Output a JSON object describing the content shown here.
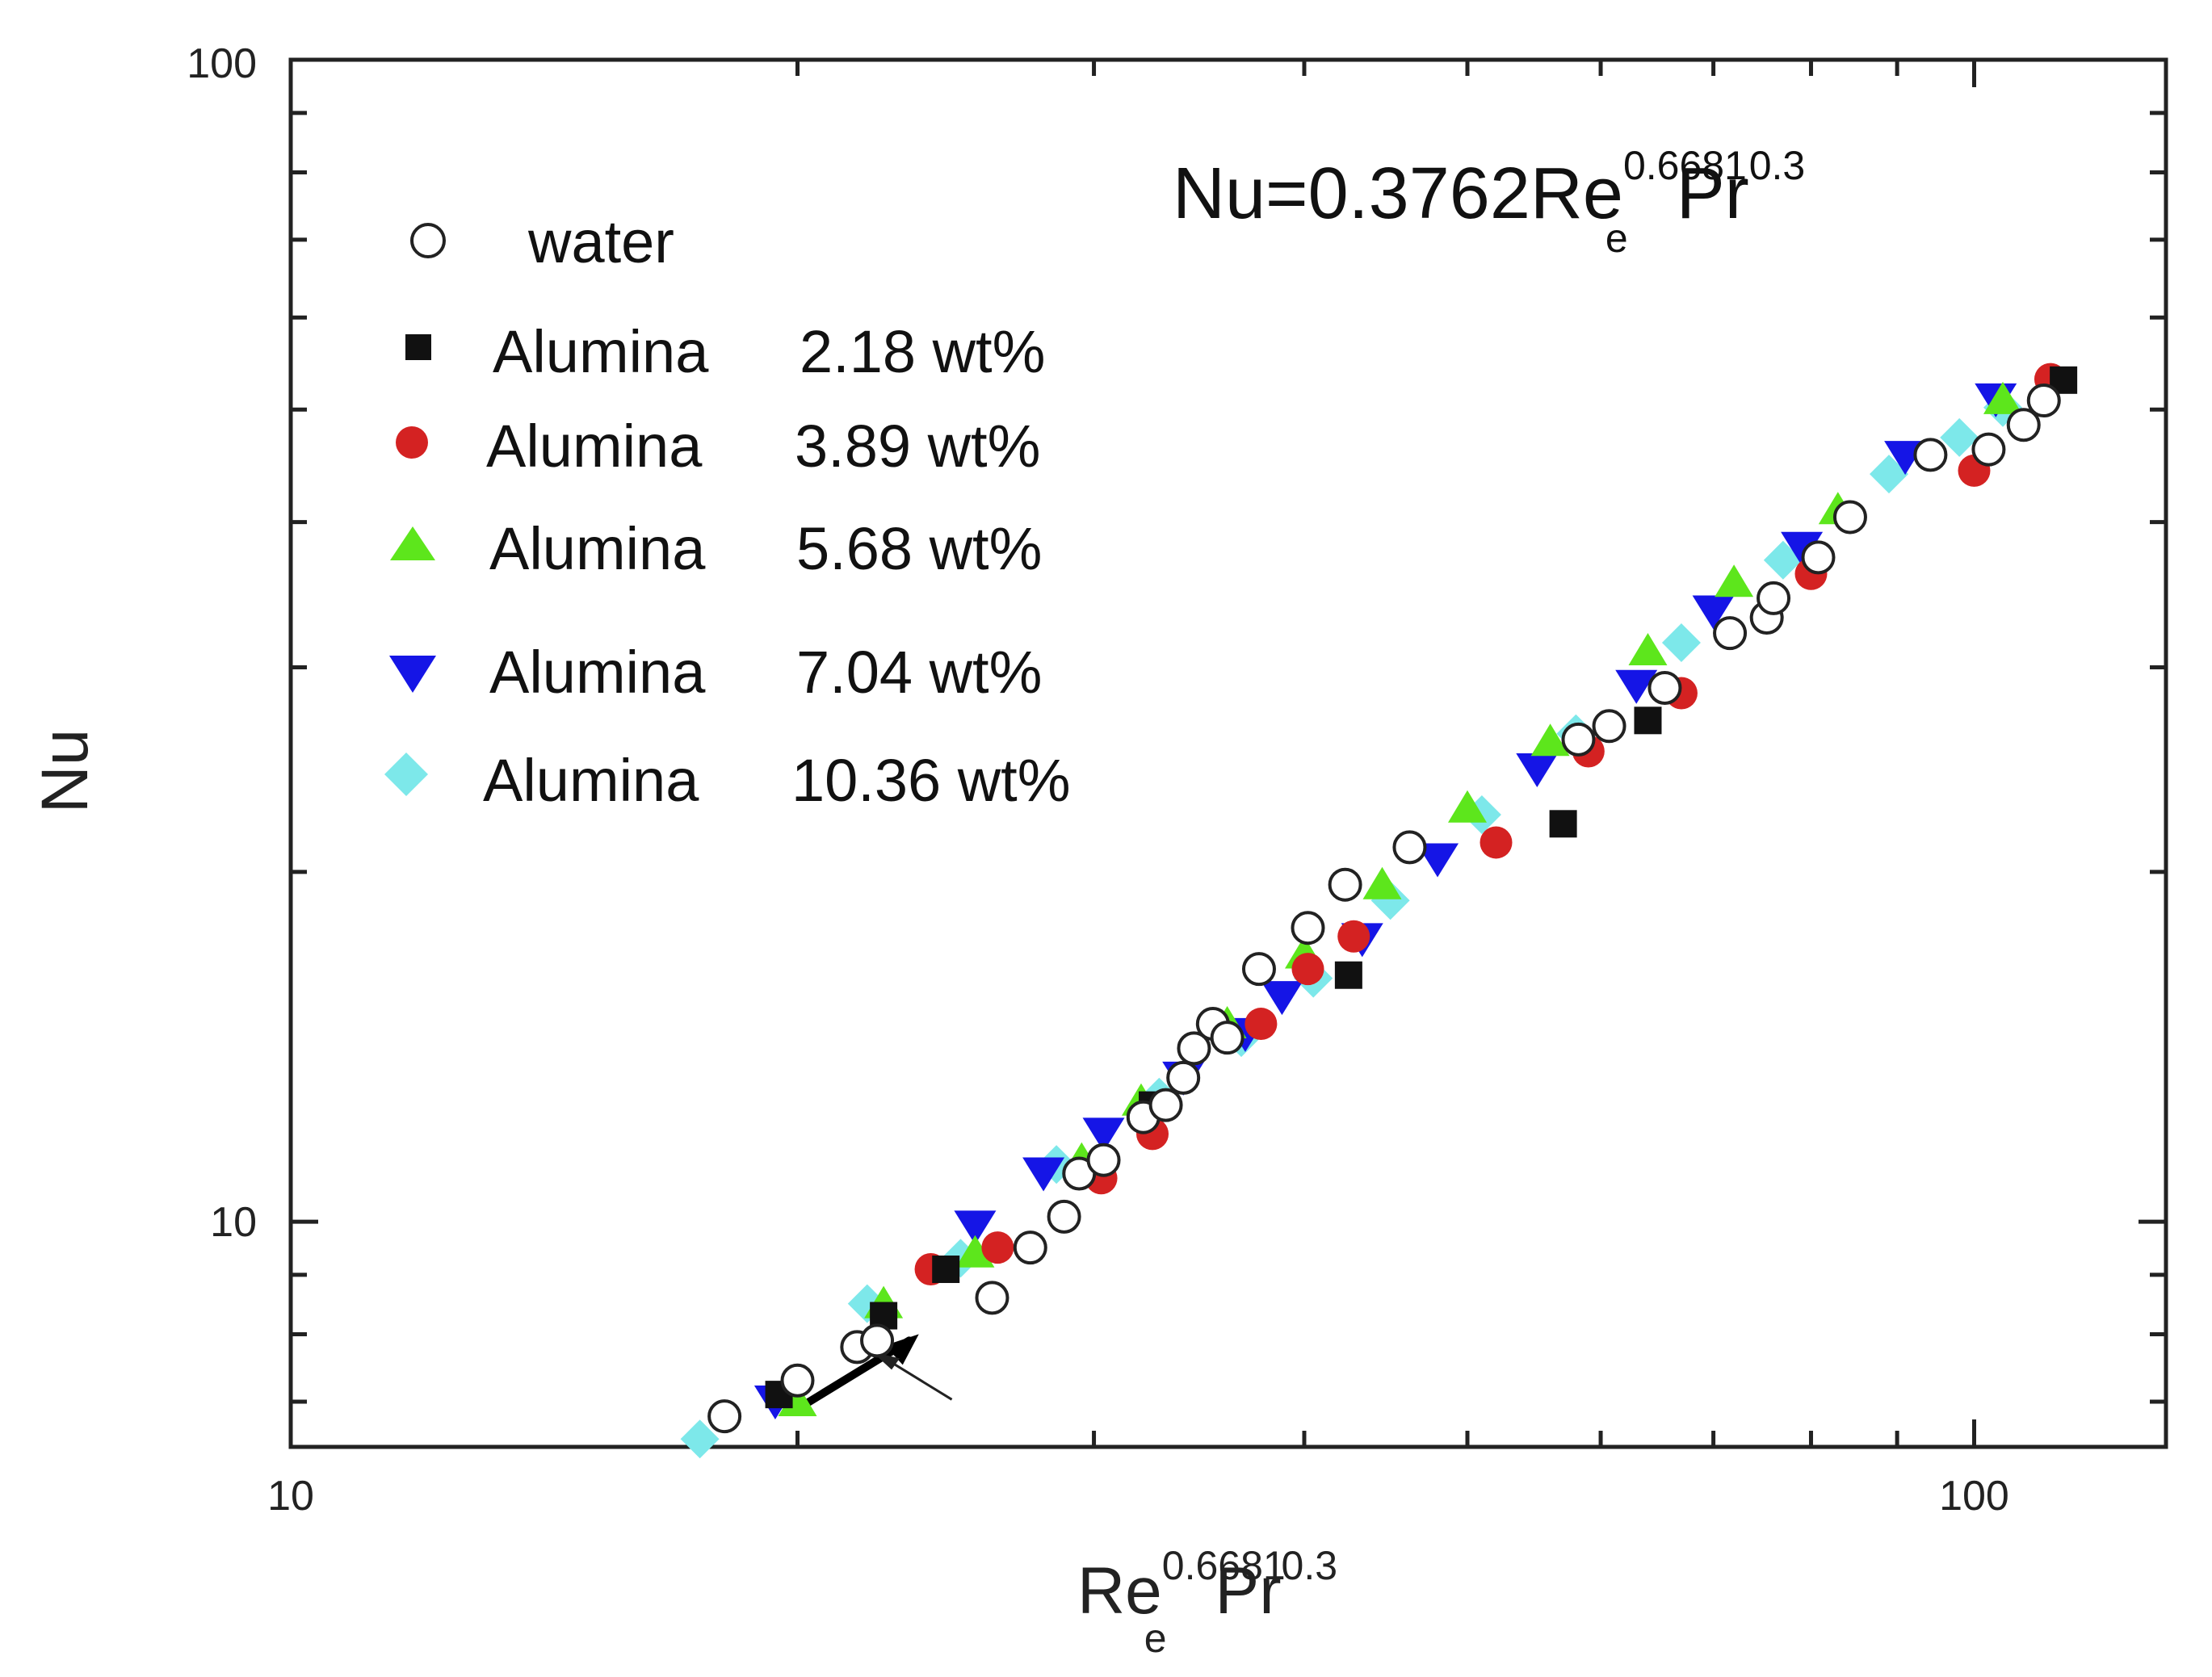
{
  "chart_data": {
    "type": "scatter",
    "x_scale": "log",
    "y_scale": "log",
    "xlim": [
      10,
      130
    ],
    "ylim": [
      6.4,
      100
    ],
    "x_tick_labels": [
      {
        "value": 10,
        "label": "10"
      },
      {
        "value": 100,
        "label": "100"
      }
    ],
    "y_tick_labels": [
      {
        "value": 10,
        "label": "10"
      },
      {
        "value": 100,
        "label": "100"
      }
    ],
    "xlabel": {
      "base": "Re",
      "sub": "e",
      "sup1": "0.6681",
      "mid": "Pr",
      "sup2": "0.3"
    },
    "ylabel": "Nu",
    "annotation": {
      "prefix": "Nu=0.3762Re",
      "sub": "e",
      "sup1": "0.6681",
      "mid": "Pr",
      "sup2": "0.3"
    },
    "legend_position": "top-left",
    "series": [
      {
        "name": "water",
        "label": "water",
        "marker": "circle-open",
        "color": "#ffffff",
        "stroke": "#222222",
        "x": [
          18.1,
          20.0,
          21.7,
          22.3,
          26.1,
          27.5,
          28.8,
          29.4,
          30.4,
          32.1,
          33.1,
          33.9,
          34.4,
          35.3,
          36.0,
          37.6,
          40.2,
          42.3,
          46.2,
          58.2,
          60.7,
          65.5,
          71.6,
          75.3,
          76.0,
          80.8,
          84.4,
          94.2,
          102.0,
          107.0,
          110.0
        ],
        "y": [
          6.8,
          7.3,
          7.8,
          7.9,
          8.6,
          9.5,
          10.1,
          11.0,
          11.3,
          12.3,
          12.6,
          13.3,
          14.1,
          14.8,
          14.4,
          16.5,
          17.9,
          19.5,
          21.0,
          26.0,
          26.7,
          28.8,
          32.1,
          33.1,
          34.4,
          37.3,
          40.4,
          45.7,
          46.2,
          48.5,
          50.9
        ]
      },
      {
        "name": "alumina-2.18",
        "label": "Alumina",
        "pct": "2.18 wt%",
        "marker": "square",
        "color": "#111111",
        "x": [
          19.5,
          22.5,
          24.5,
          32.5,
          42.5,
          57.0,
          64.0,
          113.0
        ],
        "y": [
          7.1,
          8.3,
          9.1,
          12.6,
          16.3,
          22.0,
          27.0,
          53.0
        ]
      },
      {
        "name": "alumina-3.89",
        "label": "Alumina",
        "pct": "3.89 wt%",
        "marker": "circle",
        "color": "#d42222",
        "x": [
          24.0,
          26.3,
          30.3,
          32.5,
          37.7,
          40.2,
          42.8,
          52.0,
          59.0,
          67.0,
          80.0,
          100.0,
          111.0
        ],
        "y": [
          9.1,
          9.5,
          10.9,
          11.9,
          14.8,
          16.5,
          17.6,
          21.2,
          25.4,
          28.5,
          36.1,
          44.3,
          53.1
        ]
      },
      {
        "name": "alumina-5.68",
        "label": "Alumina",
        "pct": "5.68 wt%",
        "marker": "triangle-up",
        "color": "#5de61c",
        "x": [
          20.0,
          22.5,
          25.5,
          29.5,
          32.0,
          36.0,
          40.0,
          44.5,
          50.0,
          56.0,
          64.0,
          72.0,
          83.0,
          104.0
        ],
        "y": [
          7.0,
          8.5,
          9.4,
          11.3,
          12.7,
          14.8,
          17.0,
          19.5,
          22.7,
          25.9,
          31.0,
          35.5,
          41.0,
          51.0
        ]
      },
      {
        "name": "alumina-7.04",
        "label": "Alumina",
        "pct": "7.04 wt%",
        "marker": "triangle-down",
        "color": "#1515e6",
        "x": [
          19.4,
          25.5,
          28.0,
          30.4,
          33.9,
          36.9,
          38.8,
          43.3,
          48.0,
          55.0,
          63.0,
          70.0,
          79.0,
          91.0,
          103.0
        ],
        "y": [
          7.0,
          9.9,
          11.0,
          11.9,
          13.3,
          14.5,
          15.6,
          17.5,
          20.5,
          24.5,
          28.9,
          33.5,
          38.0,
          45.5,
          51.0
        ]
      },
      {
        "name": "alumina-10.36",
        "label": "Alumina",
        "pct": "10.36 wt%",
        "marker": "diamond",
        "color": "#7de8ea",
        "x": [
          17.5,
          22.0,
          25.0,
          28.5,
          32.8,
          36.7,
          40.5,
          45.0,
          51.0,
          58.0,
          67.0,
          77.0,
          89.0,
          98.0,
          104.0
        ],
        "y": [
          6.5,
          8.5,
          9.3,
          11.2,
          12.8,
          14.4,
          16.2,
          18.9,
          22.4,
          26.3,
          31.5,
          37.1,
          44.0,
          47.3,
          50.2
        ]
      }
    ],
    "annotation_arrow": {
      "from": [
        20.0,
        6.9
      ],
      "to": [
        23.3,
        7.9
      ],
      "pointer_tail": [
        24.7,
        7.03
      ],
      "pointer_head": [
        22.3,
        7.7
      ]
    }
  }
}
